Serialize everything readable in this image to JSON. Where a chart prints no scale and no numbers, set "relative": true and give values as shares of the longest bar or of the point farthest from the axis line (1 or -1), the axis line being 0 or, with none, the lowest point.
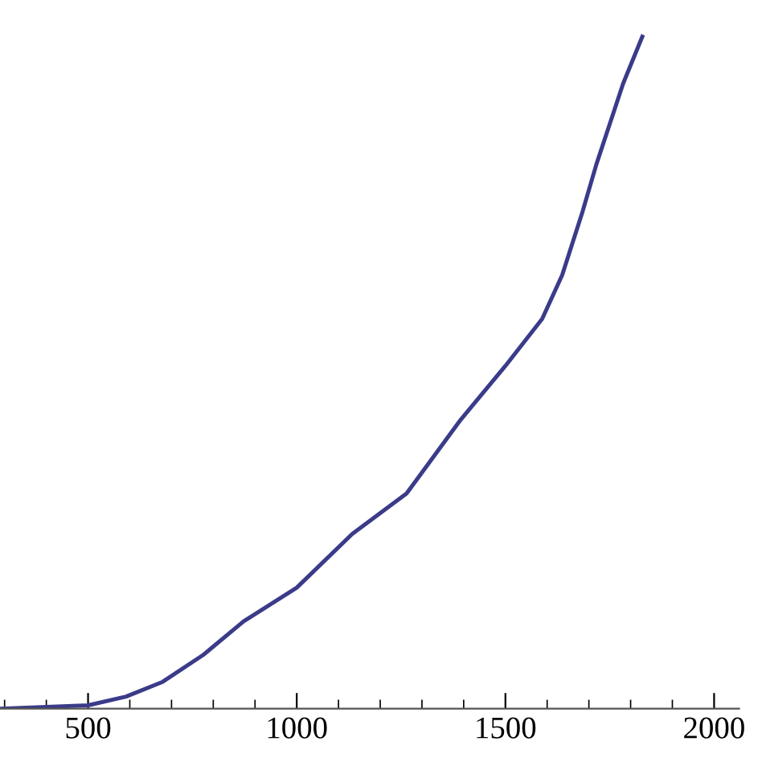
{
  "chart_data": {
    "type": "line",
    "relative": true,
    "series": [
      {
        "color": "#3b3b8a",
        "x": [
          289,
          500,
          591,
          679,
          776,
          873,
          1000,
          1133,
          1263,
          1393,
          1500,
          1588,
          1636,
          1685,
          1718,
          1782,
          1828
        ],
        "values": [
          0,
          0.005,
          0.018,
          0.04,
          0.08,
          0.13,
          0.18,
          0.26,
          0.32,
          0.43,
          0.51,
          0.58,
          0.645,
          0.74,
          0.81,
          0.93,
          1
        ]
      }
    ],
    "xlim": [
      289,
      2060
    ],
    "xticks": [
      {
        "value": 300,
        "label": null
      },
      {
        "value": 400,
        "label": null
      },
      500,
      {
        "value": 600,
        "label": null
      },
      {
        "value": 700,
        "label": null
      },
      {
        "value": 800,
        "label": null
      },
      {
        "value": 900,
        "label": null
      },
      1000,
      {
        "value": 1100,
        "label": null
      },
      {
        "value": 1200,
        "label": null
      },
      {
        "value": 1300,
        "label": null
      },
      {
        "value": 1400,
        "label": null
      },
      1500,
      {
        "value": 1600,
        "label": null
      },
      {
        "value": 1700,
        "label": null
      },
      {
        "value": 1800,
        "label": null
      },
      {
        "value": 1900,
        "label": null
      },
      2000
    ],
    "grid": false,
    "legend": false,
    "marker": "none",
    "line_style": "solid"
  }
}
